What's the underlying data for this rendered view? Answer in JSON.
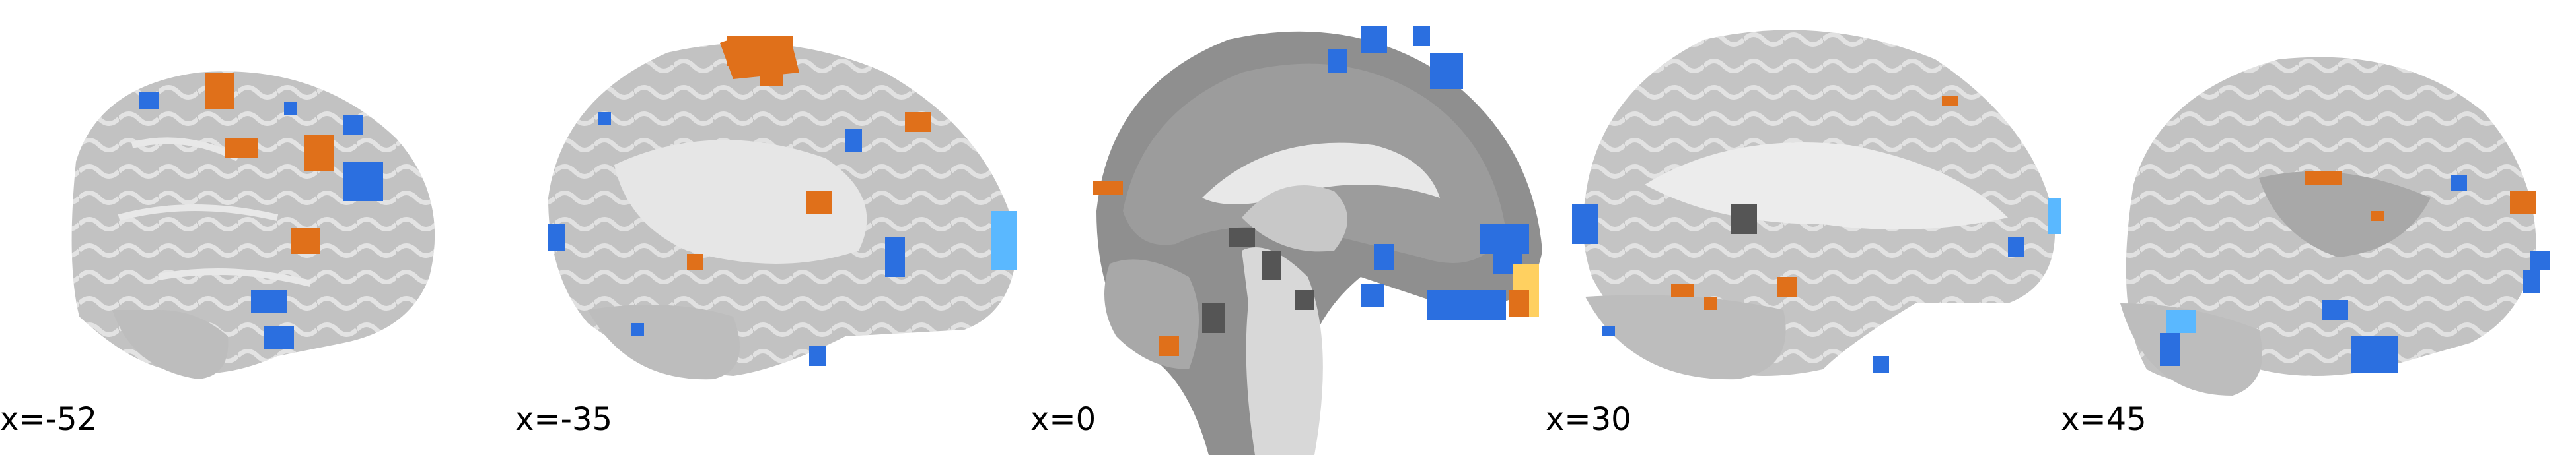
{
  "figure": {
    "background": "#ffffff",
    "brain_gray": "#b8b8b8",
    "brain_dark": "#8a8a8a",
    "activation_positive": "#e0701a",
    "activation_positive_hot": "#ffd060",
    "activation_negative": "#2b6fe0",
    "activation_negative_light": "#5ab8ff",
    "panels": [
      {
        "label": "x=-52"
      },
      {
        "label": "x=-35"
      },
      {
        "label": "x=0"
      },
      {
        "label": "x=30"
      },
      {
        "label": "x=45"
      }
    ]
  }
}
